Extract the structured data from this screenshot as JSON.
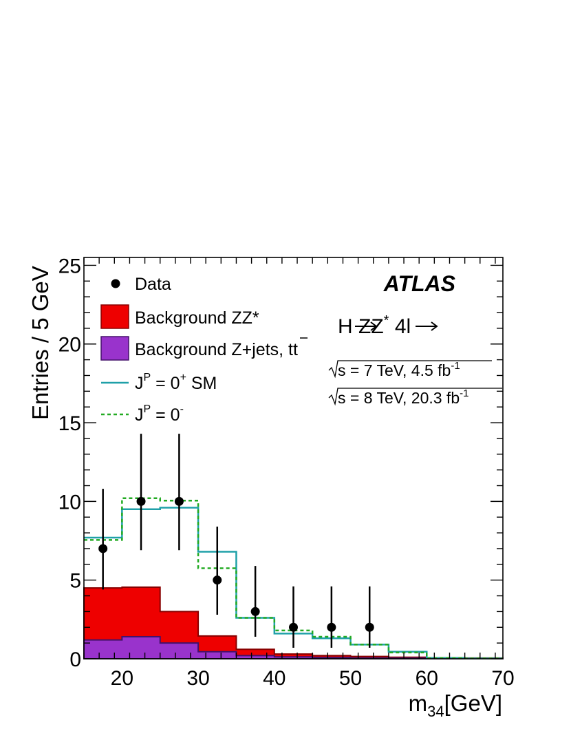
{
  "chart_data": {
    "type": "histogram",
    "xlabel": "m",
    "xlabel_sub": "34",
    "xlabel_unit": "[GeV]",
    "ylabel": "Entries / 5 GeV",
    "xlim": [
      15,
      70
    ],
    "ylim": [
      0,
      25.5
    ],
    "x_ticks": [
      20,
      30,
      40,
      50,
      60,
      70
    ],
    "y_ticks": [
      0,
      5,
      10,
      15,
      20,
      25
    ],
    "bin_edges": [
      15,
      20,
      25,
      30,
      35,
      40,
      45,
      50,
      55,
      60,
      65,
      70
    ],
    "series": [
      {
        "name": "Background Z+jets, tt",
        "style": "filled",
        "color": "#9933cc",
        "values": [
          1.2,
          1.4,
          1.0,
          0.45,
          0.2,
          0.12,
          0.08,
          0.05,
          0.04,
          0.02,
          0.01
        ]
      },
      {
        "name": "Background ZZ*",
        "style": "filled-stacked",
        "color": "#ee0000",
        "stack_totals": [
          4.5,
          4.55,
          3.0,
          1.45,
          0.6,
          0.3,
          0.2,
          0.15,
          0.1,
          0.06,
          0.05
        ]
      },
      {
        "name": "J^P = 0^+ SM",
        "style": "solid-step",
        "color": "#1fa0a8",
        "values": [
          7.7,
          9.5,
          9.6,
          6.8,
          2.6,
          1.6,
          1.3,
          0.9,
          0.45,
          0.05,
          0.02
        ]
      },
      {
        "name": "J^P = 0^-",
        "style": "dashed-step",
        "color": "#22aa22",
        "values": [
          7.55,
          10.2,
          10.05,
          5.75,
          2.6,
          1.8,
          1.4,
          0.9,
          0.4,
          0.05,
          0.02
        ]
      },
      {
        "name": "Data",
        "style": "points",
        "color": "#000000",
        "x": [
          17.5,
          22.5,
          27.5,
          32.5,
          37.5,
          42.5,
          47.5,
          52.5
        ],
        "y": [
          7,
          10,
          10,
          5,
          3,
          2,
          2,
          2
        ],
        "err_up": [
          3.8,
          4.3,
          4.3,
          3.4,
          2.9,
          2.6,
          2.6,
          2.6
        ],
        "err_down": [
          2.6,
          3.1,
          3.1,
          2.2,
          1.6,
          1.3,
          1.3,
          1.3
        ]
      }
    ]
  },
  "legend": {
    "data_label": "Data",
    "zz_label": "Background ZZ*",
    "zjets_label": "Background Z+jets, tt",
    "sm_label_main": "J",
    "sm_label_sup": "P",
    "sm_label_mid": " = 0",
    "sm_label_sup2": "+",
    "sm_label_end": " SM",
    "ps_label_main": "J",
    "ps_label_sup": "P",
    "ps_label_mid": " = 0",
    "ps_label_sup2": "-"
  },
  "annotations": {
    "experiment": "ATLAS",
    "process_h": "H",
    "process_zz": "ZZ",
    "process_star": "*",
    "process_4l": "4l",
    "energy1_main": "s = 7 TeV, 4.5 fb",
    "energy1_sup": "-1",
    "energy2_main": "s = 8 TeV, 20.3 fb",
    "energy2_sup": "-1"
  }
}
